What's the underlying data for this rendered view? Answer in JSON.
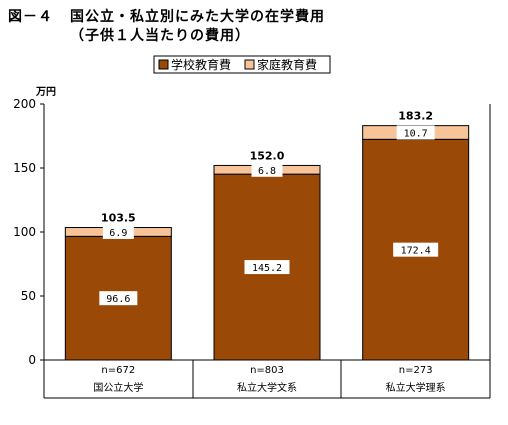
{
  "figure_label": "図－４",
  "title_line1": "国公立・私立別にみた大学の在学費用",
  "title_line2": "（子供１人当たりの費用）",
  "colors": {
    "school": "#9a4a06",
    "home": "#f7c49a",
    "stroke": "#000000"
  },
  "chart_data": {
    "type": "bar",
    "stacked": true,
    "unit_label": "万円",
    "ylim": [
      0,
      200
    ],
    "yticks": [
      0,
      50,
      100,
      150,
      200
    ],
    "grid": false,
    "legend_position": "top-right",
    "categories": [
      "国公立大学",
      "私立大学文系",
      "私立大学理系"
    ],
    "sample_sizes": [
      "n=672",
      "n=803",
      "n=273"
    ],
    "totals": [
      "103.5",
      "152.0",
      "183.2"
    ],
    "series": [
      {
        "name": "学校教育費",
        "values": [
          96.6,
          145.2,
          172.4
        ],
        "labels": [
          "96.6",
          "145.2",
          "172.4"
        ]
      },
      {
        "name": "家庭教育費",
        "values": [
          6.9,
          6.8,
          10.7
        ],
        "labels": [
          "6.9",
          "6.8",
          "10.7"
        ]
      }
    ]
  }
}
